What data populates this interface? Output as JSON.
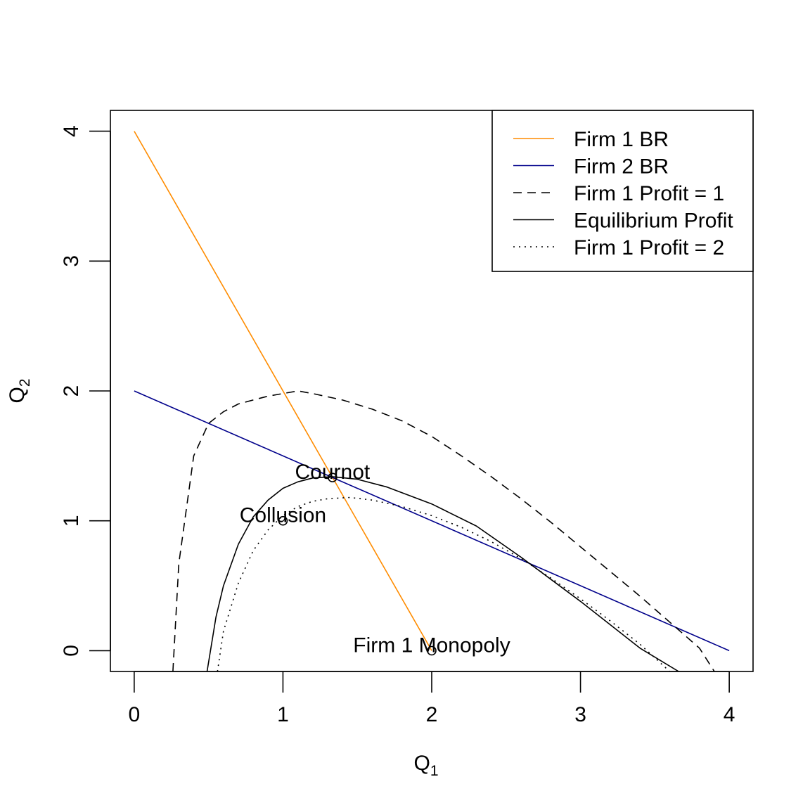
{
  "chart_data": {
    "type": "line",
    "title": "",
    "xlabel": {
      "main": "Q",
      "sub": "1"
    },
    "ylabel": {
      "main": "Q",
      "sub": "2"
    },
    "xlim": [
      -0.16,
      4.16
    ],
    "ylim": [
      -0.16,
      4.16
    ],
    "xticks": [
      0,
      1,
      2,
      3,
      4
    ],
    "yticks": [
      0,
      1,
      2,
      3,
      4
    ],
    "grid": false,
    "legend_position": "top-right",
    "series": [
      {
        "name": "Firm 1 BR",
        "color": "#ff8c00",
        "dash": "solid",
        "x": [
          0,
          2
        ],
        "y": [
          4,
          0
        ]
      },
      {
        "name": "Firm 2 BR",
        "color": "#00008b",
        "dash": "solid",
        "x": [
          0,
          4
        ],
        "y": [
          2,
          0
        ]
      },
      {
        "name": "Firm 1 Profit = 1",
        "color": "#000000",
        "dash": "dashed",
        "x": [
          0.26,
          0.3,
          0.4,
          0.5,
          0.6,
          0.7,
          0.8,
          0.9,
          1.0,
          1.1,
          1.2,
          1.4,
          1.6,
          1.8,
          2.0,
          2.2,
          2.4,
          2.6,
          2.8,
          3.0,
          3.2,
          3.4,
          3.6,
          3.8,
          3.9
        ],
        "y": [
          -0.16,
          0.67,
          1.5,
          1.75,
          1.84,
          1.9,
          1.93,
          1.96,
          1.98,
          2.0,
          1.98,
          1.93,
          1.86,
          1.77,
          1.65,
          1.5,
          1.34,
          1.17,
          0.99,
          0.8,
          0.61,
          0.42,
          0.22,
          0.02,
          -0.16
        ]
      },
      {
        "name": "Equilibrium Profit",
        "color": "#000000",
        "dash": "solid",
        "x": [
          0.49,
          0.55,
          0.6,
          0.7,
          0.8,
          0.9,
          1.0,
          1.1,
          1.2,
          1.33,
          1.5,
          1.7,
          2.0,
          2.3,
          2.6,
          2.8,
          3.0,
          3.2,
          3.4,
          3.66
        ],
        "y": [
          -0.16,
          0.26,
          0.5,
          0.82,
          1.03,
          1.16,
          1.25,
          1.3,
          1.33,
          1.34,
          1.32,
          1.26,
          1.13,
          0.96,
          0.72,
          0.55,
          0.38,
          0.2,
          0.02,
          -0.16
        ]
      },
      {
        "name": "Firm 1 Profit = 2",
        "color": "#000000",
        "dash": "dotted",
        "x": [
          0.56,
          0.6,
          0.7,
          0.8,
          0.9,
          1.0,
          1.1,
          1.2,
          1.3,
          1.45,
          1.6,
          1.8,
          2.0,
          2.2,
          2.4,
          2.6,
          2.8,
          3.0,
          3.2,
          3.4,
          3.6
        ],
        "y": [
          -0.16,
          0.15,
          0.52,
          0.77,
          0.93,
          1.04,
          1.11,
          1.15,
          1.17,
          1.18,
          1.16,
          1.11,
          1.04,
          0.95,
          0.84,
          0.71,
          0.56,
          0.4,
          0.23,
          0.05,
          -0.16
        ]
      }
    ],
    "points": [
      {
        "label": "Cournot",
        "x": 1.333,
        "y": 1.333
      },
      {
        "label": "Collusion",
        "x": 1.0,
        "y": 1.0
      },
      {
        "label": "Firm 1 Monopoly",
        "x": 2.0,
        "y": 0.0
      }
    ]
  }
}
